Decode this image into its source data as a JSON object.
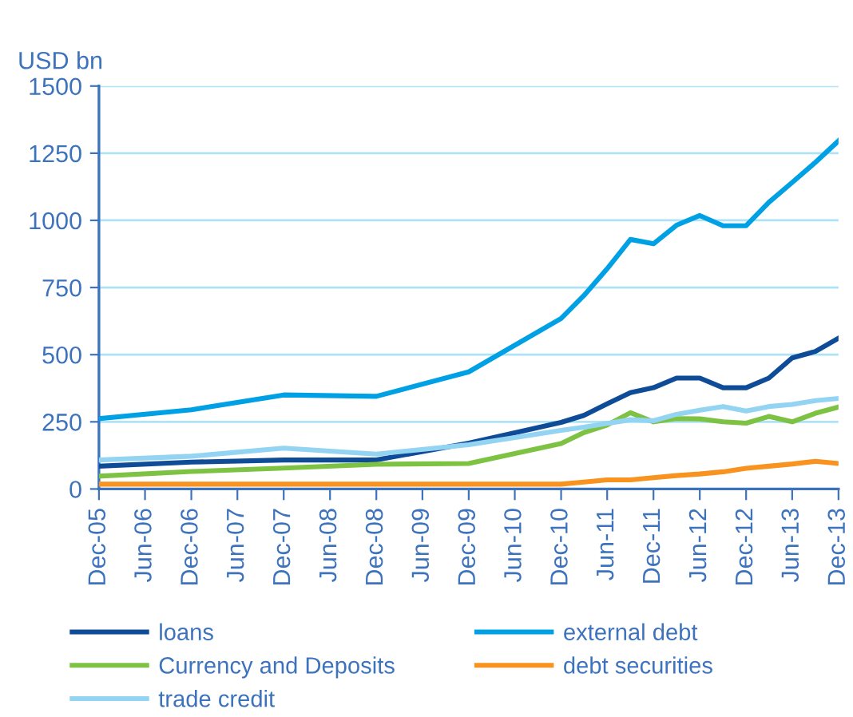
{
  "chart_data": {
    "type": "line",
    "ylabel": "USD bn",
    "x": [
      "2005-12",
      "2006-12",
      "2007-12",
      "2008-12",
      "2009-12",
      "2010-12",
      "2011-03",
      "2011-06",
      "2011-09",
      "2011-12",
      "2012-03",
      "2012-06",
      "2012-09",
      "2012-12",
      "2013-03",
      "2013-06",
      "2013-09",
      "2013-12"
    ],
    "series": [
      {
        "name": "loans",
        "color": "#0f4c97",
        "values": [
          85,
          100,
          108,
          108,
          171,
          248,
          274,
          317,
          359,
          377,
          413,
          413,
          377,
          377,
          413,
          488,
          512,
          561
        ]
      },
      {
        "name": "external debt",
        "color": "#00a1e4",
        "values": [
          262,
          295,
          350,
          345,
          436,
          635,
          720,
          820,
          929,
          913,
          982,
          1018,
          980,
          980,
          1067,
          1141,
          1216,
          1296
        ]
      },
      {
        "name": "Currency and Deposits",
        "color": "#7dc242",
        "values": [
          48,
          65,
          78,
          92,
          95,
          169,
          210,
          238,
          284,
          250,
          262,
          261,
          250,
          245,
          270,
          250,
          282,
          305
        ]
      },
      {
        "name": "debt securities",
        "color": "#f7931e",
        "values": [
          18,
          18,
          18,
          18,
          18,
          18,
          26,
          34,
          34,
          42,
          50,
          56,
          64,
          77,
          85,
          93,
          103,
          95
        ]
      },
      {
        "name": "trade credit",
        "color": "#94d4f3",
        "values": [
          108,
          122,
          152,
          130,
          165,
          218,
          230,
          244,
          258,
          254,
          278,
          293,
          307,
          290,
          307,
          315,
          329,
          337
        ]
      }
    ],
    "xlim": [
      "2005-12",
      "2013-12"
    ],
    "xticks": [
      {
        "value": "2005-12",
        "label": "Dec-05"
      },
      {
        "value": "2006-06",
        "label": "Jun-06"
      },
      {
        "value": "2006-12",
        "label": "Dec-06"
      },
      {
        "value": "2007-06",
        "label": "Jun-07"
      },
      {
        "value": "2007-12",
        "label": "Dec-07"
      },
      {
        "value": "2008-06",
        "label": "Jun-08"
      },
      {
        "value": "2008-12",
        "label": "Dec-08"
      },
      {
        "value": "2009-06",
        "label": "Jun-09"
      },
      {
        "value": "2009-12",
        "label": "Dec-09"
      },
      {
        "value": "2010-06",
        "label": "Jun-10"
      },
      {
        "value": "2010-12",
        "label": "Dec-10"
      },
      {
        "value": "2011-06",
        "label": "Jun-11"
      },
      {
        "value": "2011-12",
        "label": "Dec-11"
      },
      {
        "value": "2012-06",
        "label": "Jun-12"
      },
      {
        "value": "2012-12",
        "label": "Dec-12"
      },
      {
        "value": "2013-06",
        "label": "Jun-13"
      },
      {
        "value": "2013-12",
        "label": "Dec-13"
      }
    ],
    "ylim": [
      0,
      1500
    ],
    "yticks": [
      0,
      250,
      500,
      750,
      1000,
      1250,
      1500
    ],
    "grid": "y",
    "legend": "bottom",
    "marker": "none",
    "line_style": "solid"
  }
}
